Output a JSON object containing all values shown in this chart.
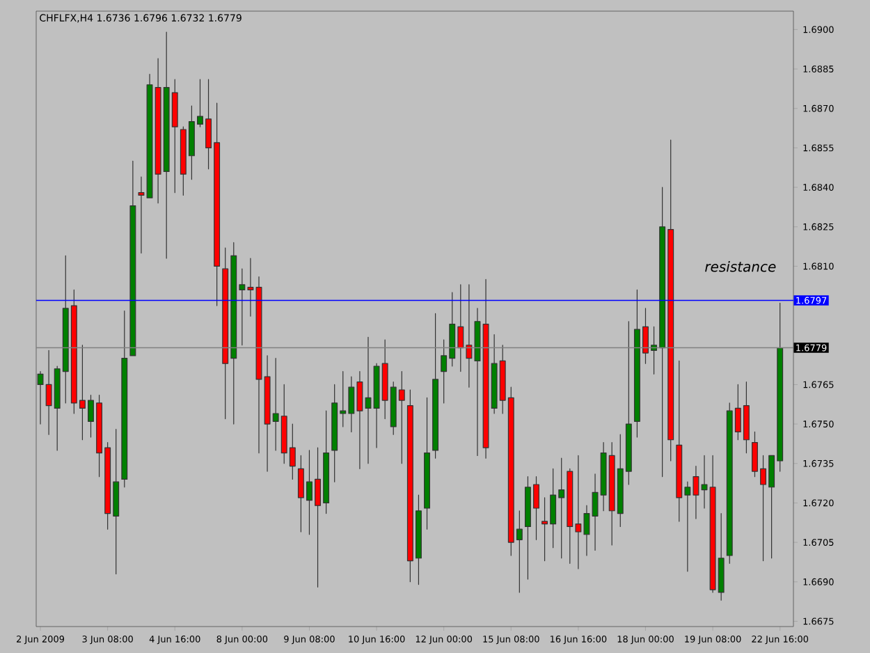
{
  "chart_data": {
    "type": "candlestick",
    "title": "CHFLFX,H4 1.6736 1.6796 1.6732 1.6779",
    "categories": [
      "2 Jun 2009",
      null,
      null,
      null,
      null,
      null,
      null,
      null,
      "3 Jun 08:00",
      null,
      null,
      null,
      null,
      null,
      null,
      null,
      "4 Jun 16:00",
      null,
      null,
      null,
      null,
      null,
      null,
      null,
      "8 Jun 00:00",
      null,
      null,
      null,
      null,
      null,
      null,
      null,
      "9 Jun 08:00",
      null,
      null,
      null,
      null,
      null,
      null,
      null,
      "10 Jun 16:00",
      null,
      null,
      null,
      null,
      null,
      null,
      null,
      "12 Jun 00:00",
      null,
      null,
      null,
      null,
      null,
      null,
      null,
      "15 Jun 08:00",
      null,
      null,
      null,
      null,
      null,
      null,
      null,
      "16 Jun 16:00",
      null,
      null,
      null,
      null,
      null,
      null,
      null,
      "18 Jun 00:00",
      null,
      null,
      null,
      null,
      null,
      null,
      null,
      "19 Jun 08:00",
      null,
      null,
      null,
      null,
      null,
      null,
      null,
      "22 Jun 16:00"
    ],
    "ohlc": [
      [
        1.6765,
        1.677,
        1.675,
        1.6769
      ],
      [
        1.6765,
        1.6778,
        1.6746,
        1.6757
      ],
      [
        1.6756,
        1.6772,
        1.674,
        1.6771
      ],
      [
        1.677,
        1.6814,
        1.6758,
        1.6794
      ],
      [
        1.6795,
        1.6801,
        1.6754,
        1.6758
      ],
      [
        1.6759,
        1.678,
        1.6744,
        1.6756
      ],
      [
        1.6751,
        1.6761,
        1.6745,
        1.6759
      ],
      [
        1.6758,
        1.6761,
        1.673,
        1.6739
      ],
      [
        1.6741,
        1.6743,
        1.671,
        1.6716
      ],
      [
        1.6715,
        1.6748,
        1.6693,
        1.6728
      ],
      [
        1.6729,
        1.6793,
        1.6726,
        1.6775
      ],
      [
        1.6776,
        1.685,
        1.6776,
        1.6833
      ],
      [
        1.6838,
        1.6844,
        1.6815,
        1.6837
      ],
      [
        1.6836,
        1.6883,
        1.6836,
        1.6879
      ],
      [
        1.6878,
        1.6889,
        1.6834,
        1.6845
      ],
      [
        1.6846,
        1.6899,
        1.6813,
        1.6878
      ],
      [
        1.6876,
        1.6881,
        1.6838,
        1.6863
      ],
      [
        1.6862,
        1.6863,
        1.6837,
        1.6845
      ],
      [
        1.6852,
        1.6871,
        1.6843,
        1.6865
      ],
      [
        1.6864,
        1.6881,
        1.6863,
        1.6867
      ],
      [
        1.6866,
        1.6881,
        1.6847,
        1.6855
      ],
      [
        1.6857,
        1.6872,
        1.6795,
        1.681
      ],
      [
        1.6809,
        1.6817,
        1.6752,
        1.6773
      ],
      [
        1.6775,
        1.6819,
        1.675,
        1.6814
      ],
      [
        1.6801,
        1.6809,
        1.678,
        1.6803
      ],
      [
        1.6802,
        1.6813,
        1.6791,
        1.6801
      ],
      [
        1.6802,
        1.6806,
        1.6739,
        1.6767
      ],
      [
        1.6768,
        1.6776,
        1.6732,
        1.675
      ],
      [
        1.6751,
        1.6775,
        1.674,
        1.6754
      ],
      [
        1.6753,
        1.6765,
        1.6735,
        1.6739
      ],
      [
        1.6741,
        1.675,
        1.6729,
        1.6734
      ],
      [
        1.6733,
        1.6738,
        1.6709,
        1.6722
      ],
      [
        1.6721,
        1.674,
        1.6708,
        1.6728
      ],
      [
        1.6729,
        1.6741,
        1.6688,
        1.6719
      ],
      [
        1.672,
        1.6755,
        1.6716,
        1.6739
      ],
      [
        1.674,
        1.6765,
        1.6728,
        1.6758
      ],
      [
        1.6754,
        1.677,
        1.6749,
        1.6755
      ],
      [
        1.6754,
        1.6768,
        1.6747,
        1.6764
      ],
      [
        1.6766,
        1.677,
        1.6733,
        1.6755
      ],
      [
        1.6756,
        1.6783,
        1.6735,
        1.676
      ],
      [
        1.6756,
        1.6773,
        1.6741,
        1.6772
      ],
      [
        1.6773,
        1.6782,
        1.6752,
        1.6759
      ],
      [
        1.6749,
        1.6766,
        1.6746,
        1.6764
      ],
      [
        1.6763,
        1.677,
        1.6735,
        1.6759
      ],
      [
        1.6757,
        1.6763,
        1.669,
        1.6698
      ],
      [
        1.6699,
        1.6723,
        1.6689,
        1.6717
      ],
      [
        1.6718,
        1.676,
        1.671,
        1.6739
      ],
      [
        1.674,
        1.6792,
        1.6737,
        1.6767
      ],
      [
        1.677,
        1.6782,
        1.6758,
        1.6776
      ],
      [
        1.6775,
        1.68,
        1.6772,
        1.6788
      ],
      [
        1.6787,
        1.6803,
        1.677,
        1.6779
      ],
      [
        1.678,
        1.6803,
        1.6764,
        1.6775
      ],
      [
        1.6774,
        1.6794,
        1.6738,
        1.6789
      ],
      [
        1.6788,
        1.6805,
        1.6737,
        1.6741
      ],
      [
        1.6756,
        1.6784,
        1.6754,
        1.6773
      ],
      [
        1.6774,
        1.678,
        1.6754,
        1.6759
      ],
      [
        1.676,
        1.6764,
        1.67,
        1.6705
      ],
      [
        1.6706,
        1.6717,
        1.6686,
        1.671
      ],
      [
        1.6711,
        1.673,
        1.6691,
        1.6726
      ],
      [
        1.6727,
        1.673,
        1.6706,
        1.6718
      ],
      [
        1.6713,
        1.6722,
        1.6698,
        1.6712
      ],
      [
        1.6712,
        1.6733,
        1.6703,
        1.6723
      ],
      [
        1.6722,
        1.6737,
        1.6699,
        1.6725
      ],
      [
        1.6732,
        1.6733,
        1.6697,
        1.6711
      ],
      [
        1.6712,
        1.6738,
        1.6695,
        1.6709
      ],
      [
        1.6708,
        1.6719,
        1.67,
        1.6716
      ],
      [
        1.6715,
        1.6731,
        1.6702,
        1.6724
      ],
      [
        1.6723,
        1.6743,
        1.6717,
        1.6739
      ],
      [
        1.6738,
        1.6743,
        1.6704,
        1.6717
      ],
      [
        1.6716,
        1.6746,
        1.6711,
        1.6733
      ],
      [
        1.6732,
        1.6789,
        1.6727,
        1.675
      ],
      [
        1.6751,
        1.6801,
        1.6745,
        1.6786
      ],
      [
        1.6787,
        1.6794,
        1.6773,
        1.6777
      ],
      [
        1.6778,
        1.6787,
        1.6769,
        1.678
      ],
      [
        1.6779,
        1.684,
        1.673,
        1.6825
      ],
      [
        1.6824,
        1.6858,
        1.6736,
        1.6744
      ],
      [
        1.6742,
        1.6774,
        1.6713,
        1.6722
      ],
      [
        1.6723,
        1.6728,
        1.6694,
        1.6726
      ],
      [
        1.673,
        1.6734,
        1.6714,
        1.6723
      ],
      [
        1.6725,
        1.6738,
        1.6718,
        1.6727
      ],
      [
        1.6726,
        1.6738,
        1.6686,
        1.6687
      ],
      [
        1.6686,
        1.6716,
        1.6683,
        1.6699
      ],
      [
        1.67,
        1.6758,
        1.6697,
        1.6755
      ],
      [
        1.6756,
        1.6765,
        1.6744,
        1.6747
      ],
      [
        1.6757,
        1.6766,
        1.6739,
        1.6744
      ],
      [
        1.6743,
        1.6747,
        1.673,
        1.6732
      ],
      [
        1.6733,
        1.6738,
        1.6698,
        1.6727
      ],
      [
        1.6726,
        1.6738,
        1.6699,
        1.6738
      ],
      [
        1.6736,
        1.6796,
        1.6732,
        1.6779
      ]
    ],
    "colors": [
      "#008000",
      "#ff0000",
      "#008000",
      "#008000",
      "#ff0000",
      "#ff0000",
      "#008000",
      "#ff0000",
      "#ff0000",
      "#008000",
      "#008000",
      "#008000",
      "#ff0000",
      "#008000",
      "#ff0000",
      "#008000",
      "#ff0000",
      "#ff0000",
      "#008000",
      "#008000",
      "#ff0000",
      "#ff0000",
      "#ff0000",
      "#008000",
      "#008000",
      "#ff0000",
      "#ff0000",
      "#ff0000",
      "#008000",
      "#ff0000",
      "#ff0000",
      "#ff0000",
      "#008000",
      "#ff0000",
      "#008000",
      "#008000",
      "#008000",
      "#008000",
      "#ff0000",
      "#008000",
      "#008000",
      "#ff0000",
      "#008000",
      "#ff0000",
      "#ff0000",
      "#008000",
      "#008000",
      "#008000",
      "#008000",
      "#008000",
      "#ff0000",
      "#ff0000",
      "#008000",
      "#ff0000",
      "#008000",
      "#ff0000",
      "#ff0000",
      "#008000",
      "#008000",
      "#ff0000",
      "#ff0000",
      "#008000",
      "#008000",
      "#ff0000",
      "#ff0000",
      "#008000",
      "#008000",
      "#008000",
      "#ff0000",
      "#008000",
      "#008000",
      "#008000",
      "#ff0000",
      "#008000",
      "#008000",
      "#ff0000",
      "#ff0000",
      "#008000",
      "#ff0000",
      "#008000",
      "#ff0000",
      "#008000",
      "#008000",
      "#ff0000",
      "#ff0000",
      "#ff0000",
      "#ff0000",
      "#008000",
      "#008000"
    ],
    "ylim": [
      1.6673,
      1.6907
    ],
    "yticks": [
      {
        "value": 1.6675,
        "label": "1.6675"
      },
      {
        "value": 1.669,
        "label": "1.6690"
      },
      {
        "value": 1.6705,
        "label": "1.6705"
      },
      {
        "value": 1.672,
        "label": "1.6720"
      },
      {
        "value": 1.6735,
        "label": "1.6735"
      },
      {
        "value": 1.675,
        "label": "1.6750"
      },
      {
        "value": 1.6765,
        "label": "1.6765"
      },
      {
        "value": 1.681,
        "label": "1.6810"
      },
      {
        "value": 1.6825,
        "label": "1.6825"
      },
      {
        "value": 1.684,
        "label": "1.6840"
      },
      {
        "value": 1.6855,
        "label": "1.6855"
      },
      {
        "value": 1.687,
        "label": "1.6870"
      },
      {
        "value": 1.6885,
        "label": "1.6885"
      },
      {
        "value": 1.69,
        "label": "1.6900"
      }
    ],
    "ref_lines": [
      {
        "axis": "y",
        "value": 1.6797,
        "label": "1.6797",
        "color": "#0000ff"
      },
      {
        "axis": "y",
        "value": 1.6779,
        "label": "1.6779",
        "color": "#808080"
      }
    ],
    "annotations": [
      "resistance"
    ]
  }
}
